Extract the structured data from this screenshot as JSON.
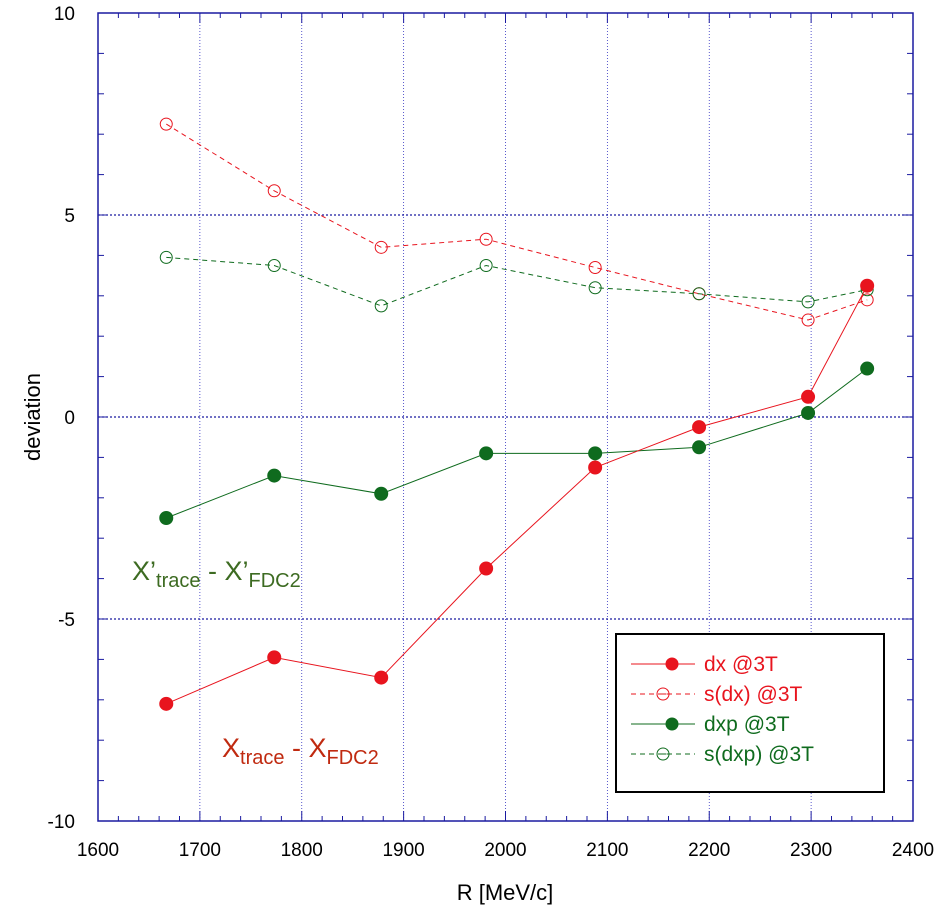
{
  "chart_data": {
    "type": "line",
    "xlabel": "R [MeV/c]",
    "ylabel": "deviation",
    "xlim": [
      1600,
      2400
    ],
    "ylim": [
      -10,
      10
    ],
    "x_ticks": [
      "1600",
      "1700",
      "1800",
      "1900",
      "2000",
      "2100",
      "2200",
      "2300",
      "2400"
    ],
    "y_ticks": [
      "-10",
      "-5",
      "0",
      "5",
      "10"
    ],
    "grid": "vertical dotted lines every 100; horizontal dotted lines at -5, 0, 5",
    "legend_position": "bottom-right",
    "x": [
      1667,
      1773,
      1878,
      1981,
      2088,
      2190,
      2297,
      2355
    ],
    "series": [
      {
        "name": "dx @3T",
        "color": "#e8141e",
        "style": "solid",
        "marker": "filled-circle",
        "values": [
          -7.1,
          -5.95,
          -6.45,
          -3.75,
          -1.25,
          -0.25,
          0.5,
          3.25
        ]
      },
      {
        "name": "s(dx) @3T",
        "color": "#e8141e",
        "style": "dashed",
        "marker": "open-circle",
        "values": [
          7.25,
          5.6,
          4.2,
          4.4,
          3.7,
          3.05,
          2.4,
          2.9
        ]
      },
      {
        "name": "dxp @3T",
        "color": "#0f6b1e",
        "style": "solid",
        "marker": "filled-circle",
        "values": [
          -2.5,
          -1.45,
          -1.9,
          -0.9,
          -0.9,
          -0.75,
          0.1,
          1.2
        ]
      },
      {
        "name": "s(dxp) @3T",
        "color": "#0f6b1e",
        "style": "dashed",
        "marker": "open-circle",
        "values": [
          3.95,
          3.75,
          2.75,
          3.75,
          3.2,
          3.05,
          2.85,
          3.15
        ]
      }
    ],
    "annotations": [
      {
        "main": "X’",
        "sub": "trace",
        "mid": " - X’",
        "sub2": "FDC2",
        "color": "#3d6b22"
      },
      {
        "main": "X",
        "sub": "trace",
        "mid": " - X",
        "sub2": "FDC2",
        "color": "#c02a10"
      }
    ]
  }
}
